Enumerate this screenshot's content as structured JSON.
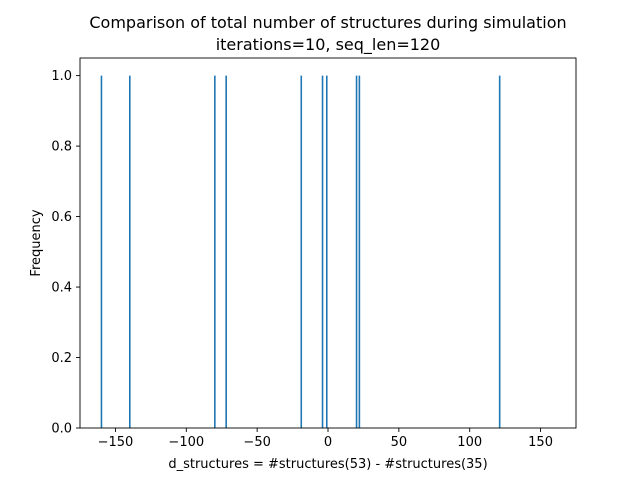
{
  "chart_data": {
    "type": "bar",
    "title": "Comparison of total number of structures during simulation",
    "subtitle": "iterations=10, seq_len=120",
    "xlabel": "d_structures = #structures(53) - #structures(35)",
    "ylabel": "Frequency",
    "xlim": [
      -175,
      175
    ],
    "ylim": [
      0,
      1.05
    ],
    "xticks": [
      -150,
      -100,
      -50,
      0,
      50,
      100,
      150
    ],
    "xtick_labels": [
      "−150",
      "−100",
      "−50",
      "0",
      "50",
      "100",
      "150"
    ],
    "yticks": [
      0.0,
      0.2,
      0.4,
      0.6,
      0.8,
      1.0
    ],
    "ytick_labels": [
      "0.0",
      "0.2",
      "0.4",
      "0.6",
      "0.8",
      "1.0"
    ],
    "grid": false,
    "bar_color": "#1f77b4",
    "bins": [
      {
        "x": -160,
        "freq": 1
      },
      {
        "x": -140,
        "freq": 1
      },
      {
        "x": -80,
        "freq": 1
      },
      {
        "x": -72,
        "freq": 1
      },
      {
        "x": -19,
        "freq": 1
      },
      {
        "x": -4,
        "freq": 1
      },
      {
        "x": -1,
        "freq": 1
      },
      {
        "x": 20,
        "freq": 1
      },
      {
        "x": 22,
        "freq": 1
      },
      {
        "x": 121,
        "freq": 1
      }
    ]
  }
}
